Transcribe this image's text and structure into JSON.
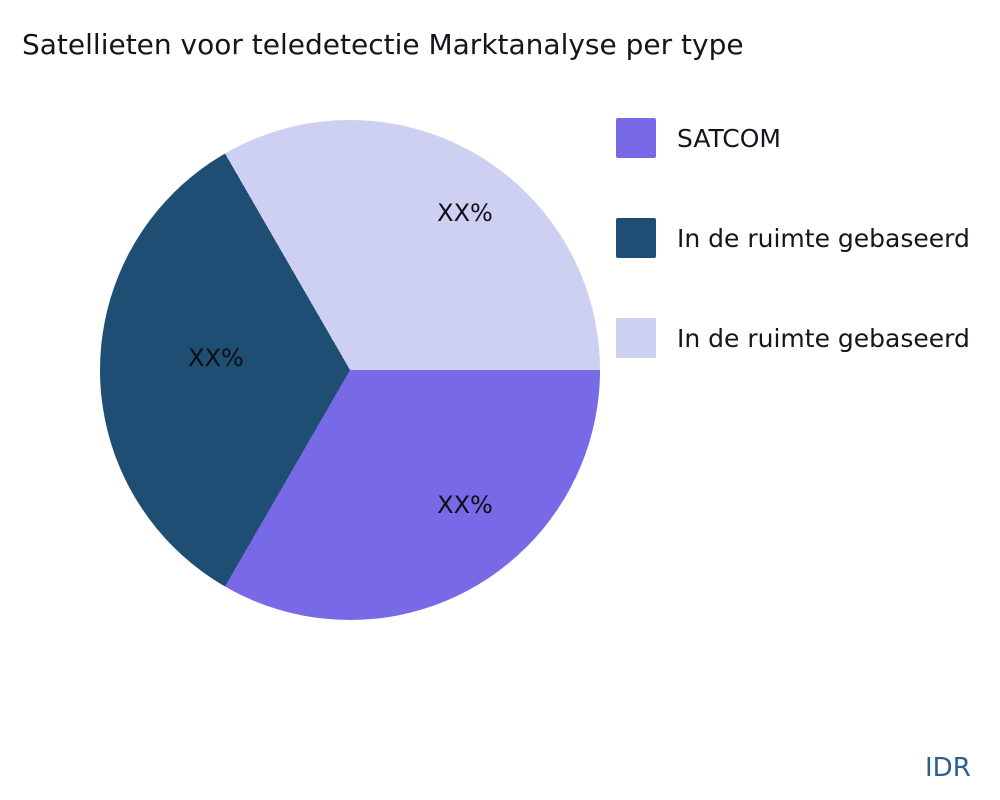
{
  "title": "Satellieten voor teledetectie Marktanalyse per type",
  "watermark": "IDR",
  "chart_data": {
    "type": "pie",
    "title": "Satellieten voor teledetectie Marktanalyse per type",
    "start_angle_css_deg": 90,
    "direction": "clockwise",
    "legend_position": "right",
    "labels_inside": true,
    "slices": [
      {
        "label": "SATCOM",
        "value": 33.33,
        "display": "XX%",
        "color": "#7869e6"
      },
      {
        "label": "In de ruimte gebaseerd",
        "value": 33.33,
        "display": "XX%",
        "color": "#1f4e74"
      },
      {
        "label": "In de ruimte gebaseerd",
        "value": 33.33,
        "display": "XX%",
        "color": "#cdd0f0"
      }
    ]
  }
}
